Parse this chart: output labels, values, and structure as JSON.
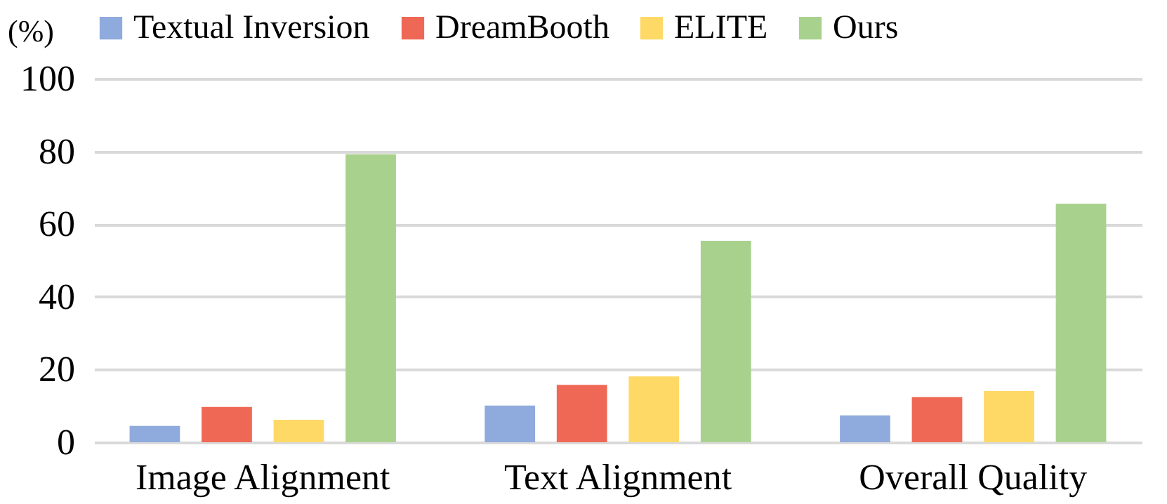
{
  "chart_data": {
    "type": "bar",
    "ylabel": "(%)",
    "categories": [
      "Image Alignment",
      "Text Alignment",
      "Overall Quality"
    ],
    "series": [
      {
        "name": "Textual Inversion",
        "color": "#8faadc",
        "values": [
          4.5,
          10.1,
          7.4
        ]
      },
      {
        "name": "DreamBooth",
        "color": "#ef6856",
        "values": [
          9.7,
          15.8,
          12.4
        ]
      },
      {
        "name": "ELITE",
        "color": "#ffd966",
        "values": [
          6.2,
          18.1,
          14.1
        ]
      },
      {
        "name": "Ours",
        "color": "#a9d18e",
        "values": [
          79.2,
          55.4,
          65.6
        ]
      }
    ],
    "ylim": [
      0,
      100
    ],
    "yticks": [
      0,
      20,
      40,
      60,
      80,
      100
    ],
    "grid": "y",
    "legend": "top"
  }
}
